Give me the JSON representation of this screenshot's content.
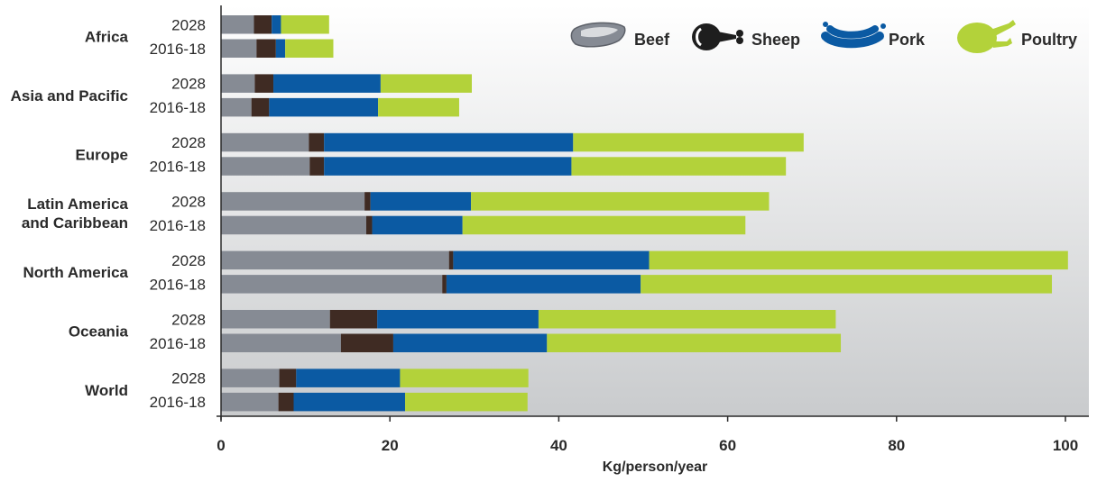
{
  "chart_data": {
    "type": "bar",
    "orientation": "horizontal",
    "stacked": true,
    "xlabel": "Kg/person/year",
    "xlim": [
      0,
      100
    ],
    "xticks": [
      0,
      20,
      40,
      60,
      80,
      100
    ],
    "legend_position": "top-right",
    "series": [
      {
        "name": "Beef",
        "color": "#868b94",
        "icon": "beef-steak-icon"
      },
      {
        "name": "Sheep",
        "color": "#3f2b23",
        "icon": "sheep-leg-icon"
      },
      {
        "name": "Pork",
        "color": "#0b5aa3",
        "icon": "pork-sausage-icon"
      },
      {
        "name": "Poultry",
        "color": "#b3d23a",
        "icon": "poultry-chicken-icon"
      }
    ],
    "regions": [
      {
        "name": [
          "Africa"
        ],
        "bars": [
          {
            "period": "2028",
            "values": [
              3.9,
              2.1,
              1.1,
              5.7
            ]
          },
          {
            "period": "2016-18",
            "values": [
              4.2,
              2.3,
              1.1,
              5.7
            ]
          }
        ]
      },
      {
        "name": [
          "Asia and Pacific"
        ],
        "bars": [
          {
            "period": "2028",
            "values": [
              4.0,
              2.2,
              12.7,
              10.8
            ]
          },
          {
            "period": "2016-18",
            "values": [
              3.6,
              2.1,
              12.9,
              9.6
            ]
          }
        ]
      },
      {
        "name": [
          "Europe"
        ],
        "bars": [
          {
            "period": "2028",
            "values": [
              10.4,
              1.8,
              29.5,
              27.3
            ]
          },
          {
            "period": "2016-18",
            "values": [
              10.5,
              1.7,
              29.3,
              25.4
            ]
          }
        ]
      },
      {
        "name": [
          "Latin America",
          "and Caribbean"
        ],
        "bars": [
          {
            "period": "2028",
            "values": [
              17.0,
              0.7,
              11.9,
              35.3
            ]
          },
          {
            "period": "2016-18",
            "values": [
              17.2,
              0.7,
              10.7,
              33.5
            ]
          }
        ]
      },
      {
        "name": [
          "North America"
        ],
        "bars": [
          {
            "period": "2028",
            "values": [
              27.0,
              0.5,
              23.2,
              49.6
            ]
          },
          {
            "period": "2016-18",
            "values": [
              26.2,
              0.5,
              23.0,
              48.7
            ]
          }
        ]
      },
      {
        "name": [
          "Oceania"
        ],
        "bars": [
          {
            "period": "2028",
            "values": [
              12.9,
              5.6,
              19.1,
              35.2
            ]
          },
          {
            "period": "2016-18",
            "values": [
              14.2,
              6.2,
              18.2,
              34.8
            ]
          }
        ]
      },
      {
        "name": [
          "World"
        ],
        "bars": [
          {
            "period": "2028",
            "values": [
              6.9,
              2.0,
              12.3,
              15.2
            ]
          },
          {
            "period": "2016-18",
            "values": [
              6.8,
              1.8,
              13.2,
              14.5
            ]
          }
        ]
      }
    ]
  }
}
